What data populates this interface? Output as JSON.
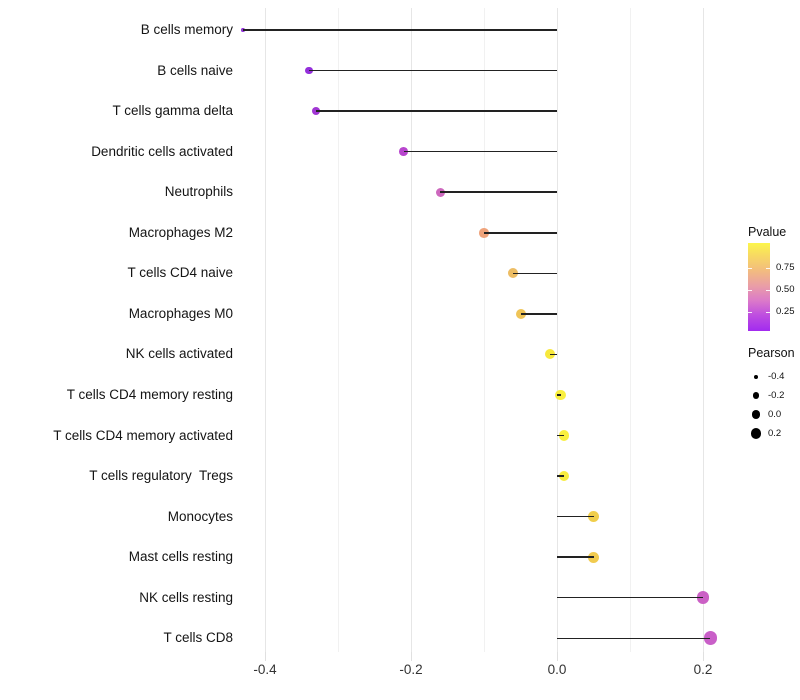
{
  "chart_data": {
    "type": "scatter",
    "subtype": "lollipop",
    "title": "",
    "xlabel": "",
    "ylabel": "",
    "x_axis": {
      "tick_labels": [
        "-0.4",
        "-0.2",
        "0.0",
        "0.2"
      ],
      "tick_values": [
        -0.4,
        -0.2,
        0.0,
        0.2
      ],
      "gridlines": [
        -0.4,
        -0.3,
        -0.2,
        -0.1,
        0.0,
        0.1,
        0.2
      ],
      "range": [
        -0.48,
        0.26
      ],
      "baseline": 0.0
    },
    "points": [
      {
        "label": "B cells memory",
        "pearson": -0.43,
        "pvalue_approx": 0.05,
        "color": "#9232d8",
        "radius": 1.8
      },
      {
        "label": "B cells naive",
        "pearson": -0.34,
        "pvalue_approx": 0.08,
        "color": "#942fdb",
        "radius": 3.9
      },
      {
        "label": "T cells gamma delta",
        "pearson": -0.33,
        "pvalue_approx": 0.1,
        "color": "#a136d4",
        "radius": 4.1
      },
      {
        "label": "Dendritic cells activated",
        "pearson": -0.21,
        "pvalue_approx": 0.22,
        "color": "#b846ce",
        "radius": 4.4
      },
      {
        "label": "Neutrophils",
        "pearson": -0.16,
        "pvalue_approx": 0.32,
        "color": "#cd68be",
        "radius": 4.6
      },
      {
        "label": "Macrophages M2",
        "pearson": -0.1,
        "pvalue_approx": 0.55,
        "color": "#efa37b",
        "radius": 4.8
      },
      {
        "label": "T cells CD4 naive",
        "pearson": -0.06,
        "pvalue_approx": 0.68,
        "color": "#edbd64",
        "radius": 5.0
      },
      {
        "label": "Macrophages M0",
        "pearson": -0.05,
        "pvalue_approx": 0.7,
        "color": "#efc457",
        "radius": 5.0
      },
      {
        "label": "NK cells activated",
        "pearson": -0.01,
        "pvalue_approx": 0.88,
        "color": "#f7e83c",
        "radius": 5.1
      },
      {
        "label": "T cells CD4 memory resting",
        "pearson": 0.005,
        "pvalue_approx": 0.93,
        "color": "#f9ef3f",
        "radius": 5.2
      },
      {
        "label": "T cells CD4 memory activated",
        "pearson": 0.01,
        "pvalue_approx": 0.93,
        "color": "#f9ef3f",
        "radius": 5.2
      },
      {
        "label": "T cells regulatory  Tregs",
        "pearson": 0.01,
        "pvalue_approx": 0.9,
        "color": "#f8ec3e",
        "radius": 5.2
      },
      {
        "label": "Monocytes",
        "pearson": 0.05,
        "pvalue_approx": 0.75,
        "color": "#f0ce4b",
        "radius": 5.5
      },
      {
        "label": "Mast cells resting",
        "pearson": 0.05,
        "pvalue_approx": 0.75,
        "color": "#f1cb4f",
        "radius": 5.5
      },
      {
        "label": "NK cells resting",
        "pearson": 0.2,
        "pvalue_approx": 0.28,
        "color": "#cb60c5",
        "radius": 6.3
      },
      {
        "label": "T cells CD8",
        "pearson": 0.21,
        "pvalue_approx": 0.3,
        "color": "#c95fc8",
        "radius": 6.8
      }
    ]
  },
  "legend": {
    "pvalue": {
      "title": "Pvalue",
      "tick_labels": [
        "0.75",
        "0.50",
        "0.25"
      ],
      "tick_values": [
        0.75,
        0.5,
        0.25
      ],
      "bar_range": [
        1.03,
        0.03
      ],
      "gradient_top_to_bottom": [
        "#fcf64b",
        "#f3be7c",
        "#ea9fa5",
        "#dc7bc8",
        "#a22bef"
      ]
    },
    "pearson": {
      "title": "Pearson",
      "entries": [
        {
          "label": "-0.4",
          "value": -0.4,
          "radius": 2.0
        },
        {
          "label": "-0.2",
          "value": -0.2,
          "radius": 3.3
        },
        {
          "label": "0.0",
          "value": 0.0,
          "radius": 4.3
        },
        {
          "label": "0.2",
          "value": 0.2,
          "radius": 5.3
        }
      ]
    }
  }
}
